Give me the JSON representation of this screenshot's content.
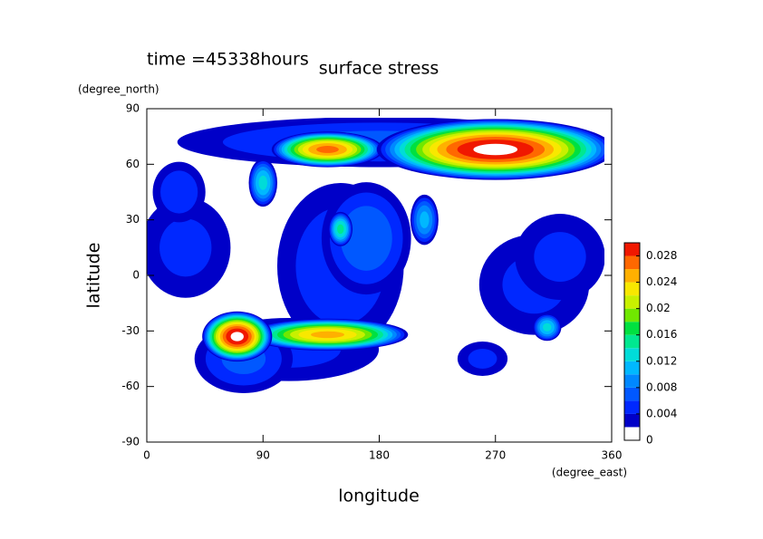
{
  "chart_data": {
    "type": "contour",
    "title": "surface stress",
    "subtitle": "time =45338hours",
    "x_label": "longitude",
    "x_unit": "(degree_east)",
    "y_label": "latitude",
    "y_unit": "(degree_north)",
    "xlim": [
      0,
      360
    ],
    "xticks": [
      0,
      90,
      180,
      270,
      360
    ],
    "ylim": [
      -90,
      90
    ],
    "yticks": [
      -90,
      -60,
      -30,
      0,
      30,
      60,
      90
    ],
    "colorbar": {
      "lim": [
        0,
        0.03
      ],
      "ticks": [
        0,
        0.004,
        0.008,
        0.012,
        0.016,
        0.02,
        0.024,
        0.028
      ],
      "levels": [
        0,
        0.002,
        0.004,
        0.006,
        0.008,
        0.01,
        0.012,
        0.014,
        0.016,
        0.018,
        0.02,
        0.022,
        0.024,
        0.026,
        0.028
      ],
      "colors": [
        "#ffffff",
        "#0000c8",
        "#0028ff",
        "#0058ff",
        "#0088ff",
        "#00b8ff",
        "#00dcd8",
        "#00e890",
        "#00e040",
        "#70e800",
        "#c8f000",
        "#f8e800",
        "#ffb000",
        "#ff6800",
        "#f01800"
      ]
    },
    "blobs": {
      "lon": [
        180,
        30,
        150,
        300,
        25,
        75,
        170,
        320,
        110,
        260,
        270,
        140,
        70,
        140,
        150,
        90,
        310,
        215
      ],
      "lat": [
        72,
        15,
        5,
        -5,
        45,
        -45,
        20,
        10,
        -40,
        -45,
        68,
        68,
        -33,
        -32,
        25,
        50,
        -28,
        30
      ],
      "rlon": [
        185,
        45,
        60,
        55,
        25,
        45,
        40,
        45,
        90,
        25,
        95,
        45,
        28,
        65,
        10,
        12,
        12,
        12
      ],
      "rlat": [
        16,
        35,
        55,
        35,
        20,
        22,
        35,
        30,
        22,
        12,
        17,
        10,
        14,
        9,
        10,
        14,
        8,
        15
      ],
      "values": [
        0.007,
        0.005,
        0.006,
        0.005,
        0.006,
        0.007,
        0.008,
        0.005,
        0.005,
        0.005,
        0.031,
        0.027,
        0.031,
        0.025,
        0.015,
        0.013,
        0.013,
        0.011
      ]
    }
  }
}
